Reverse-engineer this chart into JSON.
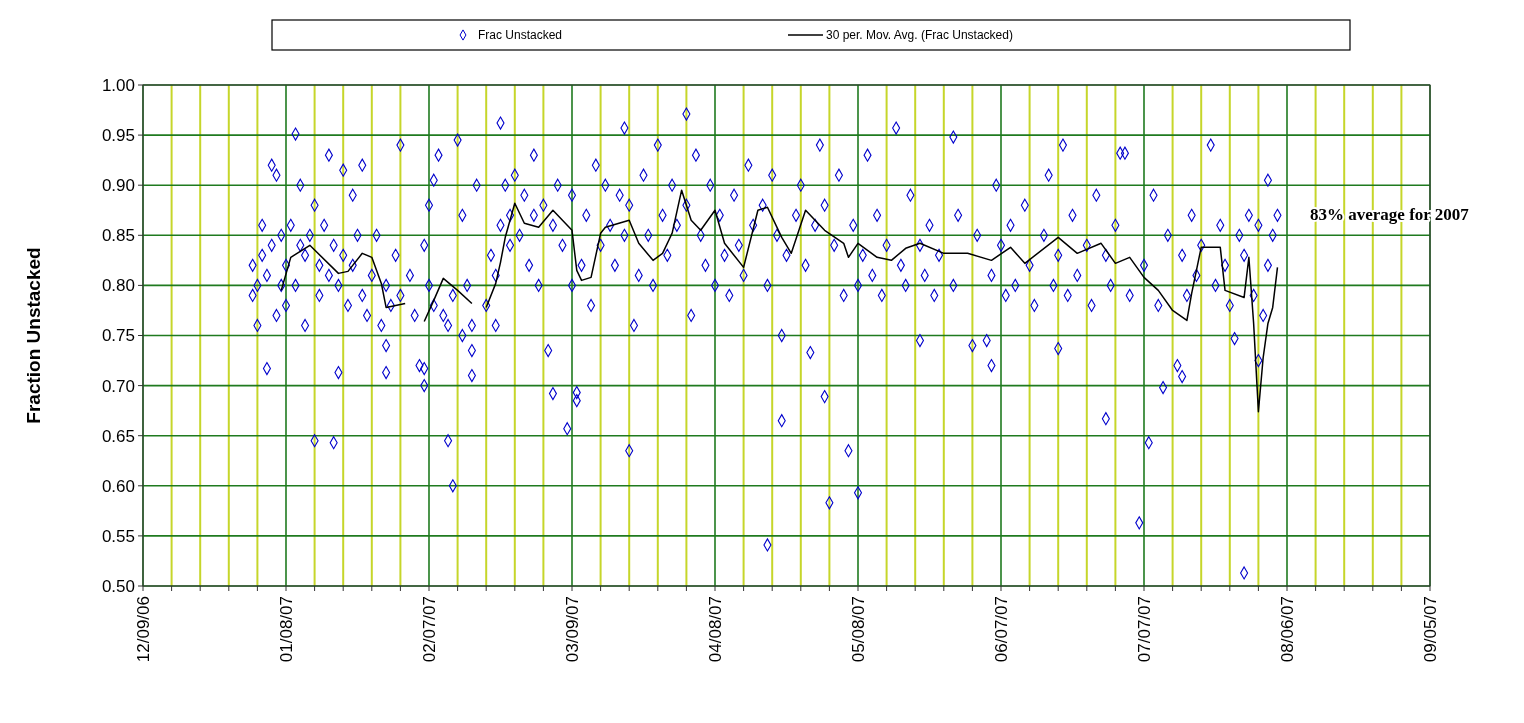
{
  "chart_data": {
    "type": "scatter",
    "ylabel": "Fraction Unstacked",
    "annotations": [
      "83% average for 2007"
    ],
    "legend": "top",
    "grid": true,
    "xlim": [
      "2006-12-09",
      "2007-09-05"
    ],
    "xticks": [
      {
        "value": "2006-12-09",
        "label": "12/09/06"
      },
      {
        "value": "2006-12-15",
        "label": null
      },
      {
        "value": "2006-12-21",
        "label": null
      },
      {
        "value": "2006-12-27",
        "label": null
      },
      {
        "value": "2007-01-02",
        "label": null
      },
      {
        "value": "2007-01-08",
        "label": "01/08/07"
      },
      {
        "value": "2007-01-14",
        "label": null
      },
      {
        "value": "2007-01-20",
        "label": null
      },
      {
        "value": "2007-01-26",
        "label": null
      },
      {
        "value": "2007-02-01",
        "label": null
      },
      {
        "value": "2007-02-07",
        "label": "02/07/07"
      },
      {
        "value": "2007-02-13",
        "label": null
      },
      {
        "value": "2007-02-19",
        "label": null
      },
      {
        "value": "2007-02-25",
        "label": null
      },
      {
        "value": "2007-03-03",
        "label": null
      },
      {
        "value": "2007-03-09",
        "label": "03/09/07"
      },
      {
        "value": "2007-03-15",
        "label": null
      },
      {
        "value": "2007-03-21",
        "label": null
      },
      {
        "value": "2007-03-27",
        "label": null
      },
      {
        "value": "2007-04-02",
        "label": null
      },
      {
        "value": "2007-04-08",
        "label": "04/08/07"
      },
      {
        "value": "2007-04-14",
        "label": null
      },
      {
        "value": "2007-04-20",
        "label": null
      },
      {
        "value": "2007-04-26",
        "label": null
      },
      {
        "value": "2007-05-02",
        "label": null
      },
      {
        "value": "2007-05-08",
        "label": "05/08/07"
      },
      {
        "value": "2007-05-14",
        "label": null
      },
      {
        "value": "2007-05-20",
        "label": null
      },
      {
        "value": "2007-05-26",
        "label": null
      },
      {
        "value": "2007-06-01",
        "label": null
      },
      {
        "value": "2007-06-07",
        "label": "06/07/07"
      },
      {
        "value": "2007-06-13",
        "label": null
      },
      {
        "value": "2007-06-19",
        "label": null
      },
      {
        "value": "2007-06-25",
        "label": null
      },
      {
        "value": "2007-07-01",
        "label": null
      },
      {
        "value": "2007-07-07",
        "label": "07/07/07"
      },
      {
        "value": "2007-07-13",
        "label": null
      },
      {
        "value": "2007-07-19",
        "label": null
      },
      {
        "value": "2007-07-25",
        "label": null
      },
      {
        "value": "2007-07-31",
        "label": null
      },
      {
        "value": "2007-08-06",
        "label": "08/06/07"
      },
      {
        "value": "2007-08-12",
        "label": null
      },
      {
        "value": "2007-08-18",
        "label": null
      },
      {
        "value": "2007-08-24",
        "label": null
      },
      {
        "value": "2007-08-30",
        "label": null
      },
      {
        "value": "2007-09-05",
        "label": "09/05/07"
      }
    ],
    "ylim": [
      0.5,
      1.0
    ],
    "yticks": [
      {
        "value": 0.5,
        "label": "0.50"
      },
      {
        "value": 0.55,
        "label": "0.55"
      },
      {
        "value": 0.6,
        "label": "0.60"
      },
      {
        "value": 0.65,
        "label": "0.65"
      },
      {
        "value": 0.7,
        "label": "0.70"
      },
      {
        "value": 0.75,
        "label": "0.75"
      },
      {
        "value": 0.8,
        "label": "0.80"
      },
      {
        "value": 0.85,
        "label": "0.85"
      },
      {
        "value": 0.9,
        "label": "0.90"
      },
      {
        "value": 0.95,
        "label": "0.95"
      },
      {
        "value": 1.0,
        "label": "1.00"
      }
    ],
    "series": [
      {
        "name": "Frac Unstacked",
        "marker": "diamond",
        "color": "#0000cc",
        "x": [
          "2007-01-01",
          "2007-01-01",
          "2007-01-02",
          "2007-01-02",
          "2007-01-03",
          "2007-01-03",
          "2007-01-04",
          "2007-01-04",
          "2007-01-05",
          "2007-01-05",
          "2007-01-06",
          "2007-01-06",
          "2007-01-07",
          "2007-01-07",
          "2007-01-08",
          "2007-01-08",
          "2007-01-09",
          "2007-01-10",
          "2007-01-10",
          "2007-01-11",
          "2007-01-11",
          "2007-01-12",
          "2007-01-12",
          "2007-01-13",
          "2007-01-14",
          "2007-01-14",
          "2007-01-15",
          "2007-01-15",
          "2007-01-16",
          "2007-01-17",
          "2007-01-17",
          "2007-01-18",
          "2007-01-18",
          "2007-01-19",
          "2007-01-19",
          "2007-01-20",
          "2007-01-20",
          "2007-01-21",
          "2007-01-22",
          "2007-01-22",
          "2007-01-23",
          "2007-01-24",
          "2007-01-24",
          "2007-01-25",
          "2007-01-26",
          "2007-01-27",
          "2007-01-28",
          "2007-01-29",
          "2007-01-29",
          "2007-01-29",
          "2007-01-30",
          "2007-01-31",
          "2007-02-01",
          "2007-02-01",
          "2007-02-03",
          "2007-02-04",
          "2007-02-05",
          "2007-02-06",
          "2007-02-06",
          "2007-02-06",
          "2007-02-07",
          "2007-02-07",
          "2007-02-08",
          "2007-02-08",
          "2007-02-09",
          "2007-02-10",
          "2007-02-11",
          "2007-02-11",
          "2007-02-12",
          "2007-02-12",
          "2007-02-13",
          "2007-02-14",
          "2007-02-14",
          "2007-02-15",
          "2007-02-16",
          "2007-02-16",
          "2007-02-16",
          "2007-02-17",
          "2007-02-19",
          "2007-02-20",
          "2007-02-21",
          "2007-02-21",
          "2007-02-22",
          "2007-02-22",
          "2007-02-23",
          "2007-02-24",
          "2007-02-24",
          "2007-02-25",
          "2007-02-26",
          "2007-02-27",
          "2007-02-28",
          "2007-03-01",
          "2007-03-01",
          "2007-03-02",
          "2007-03-03",
          "2007-03-04",
          "2007-03-05",
          "2007-03-05",
          "2007-03-06",
          "2007-03-07",
          "2007-03-08",
          "2007-03-09",
          "2007-03-09",
          "2007-03-10",
          "2007-03-10",
          "2007-03-11",
          "2007-03-12",
          "2007-03-13",
          "2007-03-14",
          "2007-03-15",
          "2007-03-16",
          "2007-03-17",
          "2007-03-18",
          "2007-03-19",
          "2007-03-20",
          "2007-03-20",
          "2007-03-21",
          "2007-03-21",
          "2007-03-22",
          "2007-03-23",
          "2007-03-24",
          "2007-03-25",
          "2007-03-26",
          "2007-03-27",
          "2007-03-28",
          "2007-03-29",
          "2007-03-30",
          "2007-03-31",
          "2007-04-02",
          "2007-04-02",
          "2007-04-03",
          "2007-04-04",
          "2007-04-05",
          "2007-04-06",
          "2007-04-07",
          "2007-04-08",
          "2007-04-09",
          "2007-04-10",
          "2007-04-11",
          "2007-04-12",
          "2007-04-13",
          "2007-04-14",
          "2007-04-15",
          "2007-04-16",
          "2007-04-18",
          "2007-04-19",
          "2007-04-19",
          "2007-04-20",
          "2007-04-21",
          "2007-04-22",
          "2007-04-22",
          "2007-04-23",
          "2007-04-25",
          "2007-04-26",
          "2007-04-27",
          "2007-04-28",
          "2007-04-29",
          "2007-04-30",
          "2007-05-01",
          "2007-05-01",
          "2007-05-02",
          "2007-05-03",
          "2007-05-04",
          "2007-05-05",
          "2007-05-06",
          "2007-05-07",
          "2007-05-08",
          "2007-05-08",
          "2007-05-09",
          "2007-05-10",
          "2007-05-11",
          "2007-05-12",
          "2007-05-13",
          "2007-05-14",
          "2007-05-16",
          "2007-05-17",
          "2007-05-18",
          "2007-05-19",
          "2007-05-21",
          "2007-05-21",
          "2007-05-22",
          "2007-05-23",
          "2007-05-24",
          "2007-05-25",
          "2007-05-28",
          "2007-05-28",
          "2007-05-29",
          "2007-06-01",
          "2007-06-02",
          "2007-06-04",
          "2007-06-05",
          "2007-06-05",
          "2007-06-06",
          "2007-06-07",
          "2007-06-08",
          "2007-06-09",
          "2007-06-10",
          "2007-06-12",
          "2007-06-13",
          "2007-06-14",
          "2007-06-16",
          "2007-06-17",
          "2007-06-18",
          "2007-06-19",
          "2007-06-19",
          "2007-06-20",
          "2007-06-21",
          "2007-06-22",
          "2007-06-23",
          "2007-06-25",
          "2007-06-26",
          "2007-06-27",
          "2007-06-29",
          "2007-06-29",
          "2007-06-30",
          "2007-07-01",
          "2007-07-02",
          "2007-07-03",
          "2007-07-04",
          "2007-07-06",
          "2007-07-07",
          "2007-07-08",
          "2007-07-09",
          "2007-07-10",
          "2007-07-11",
          "2007-07-12",
          "2007-07-14",
          "2007-07-15",
          "2007-07-15",
          "2007-07-16",
          "2007-07-17",
          "2007-07-18",
          "2007-07-19",
          "2007-07-21",
          "2007-07-22",
          "2007-07-23",
          "2007-07-24",
          "2007-07-25",
          "2007-07-26",
          "2007-07-27",
          "2007-07-28",
          "2007-07-28",
          "2007-07-29",
          "2007-07-30",
          "2007-07-31",
          "2007-07-31",
          "2007-08-01",
          "2007-08-02",
          "2007-08-02",
          "2007-08-03",
          "2007-08-04"
        ],
        "values": [
          0.79,
          0.82,
          0.76,
          0.8,
          0.86,
          0.83,
          0.717,
          0.81,
          0.92,
          0.84,
          0.77,
          0.91,
          0.8,
          0.85,
          0.78,
          0.82,
          0.86,
          0.951,
          0.8,
          0.84,
          0.9,
          0.76,
          0.83,
          0.85,
          0.645,
          0.88,
          0.82,
          0.79,
          0.86,
          0.93,
          0.81,
          0.643,
          0.84,
          0.713,
          0.8,
          0.915,
          0.83,
          0.78,
          0.89,
          0.82,
          0.85,
          0.92,
          0.79,
          0.77,
          0.81,
          0.85,
          0.76,
          0.713,
          0.74,
          0.8,
          0.78,
          0.83,
          0.79,
          0.94,
          0.81,
          0.77,
          0.72,
          0.717,
          0.7,
          0.84,
          0.88,
          0.8,
          0.905,
          0.78,
          0.93,
          0.77,
          0.645,
          0.76,
          0.6,
          0.79,
          0.945,
          0.75,
          0.87,
          0.8,
          0.735,
          0.71,
          0.76,
          0.9,
          0.78,
          0.83,
          0.76,
          0.81,
          0.962,
          0.86,
          0.9,
          0.87,
          0.84,
          0.91,
          0.85,
          0.89,
          0.82,
          0.93,
          0.87,
          0.8,
          0.88,
          0.735,
          0.692,
          0.86,
          0.9,
          0.84,
          0.657,
          0.8,
          0.89,
          0.693,
          0.685,
          0.82,
          0.87,
          0.78,
          0.92,
          0.84,
          0.9,
          0.86,
          0.82,
          0.89,
          0.957,
          0.85,
          0.635,
          0.88,
          0.76,
          0.81,
          0.91,
          0.85,
          0.8,
          0.94,
          0.87,
          0.83,
          0.9,
          0.86,
          0.971,
          0.88,
          0.77,
          0.93,
          0.85,
          0.82,
          0.9,
          0.8,
          0.87,
          0.83,
          0.79,
          0.89,
          0.84,
          0.81,
          0.92,
          0.86,
          0.88,
          0.8,
          0.541,
          0.91,
          0.85,
          0.75,
          0.665,
          0.83,
          0.87,
          0.9,
          0.82,
          0.733,
          0.86,
          0.94,
          0.689,
          0.88,
          0.583,
          0.84,
          0.91,
          0.79,
          0.635,
          0.86,
          0.593,
          0.8,
          0.83,
          0.93,
          0.81,
          0.87,
          0.79,
          0.84,
          0.957,
          0.82,
          0.8,
          0.89,
          0.745,
          0.84,
          0.81,
          0.86,
          0.79,
          0.83,
          0.948,
          0.8,
          0.87,
          0.74,
          0.85,
          0.745,
          0.72,
          0.81,
          0.9,
          0.84,
          0.79,
          0.86,
          0.8,
          0.88,
          0.82,
          0.78,
          0.85,
          0.91,
          0.8,
          0.737,
          0.83,
          0.94,
          0.79,
          0.87,
          0.81,
          0.84,
          0.78,
          0.89,
          0.667,
          0.83,
          0.8,
          0.86,
          0.932,
          0.932,
          0.79,
          0.563,
          0.82,
          0.643,
          0.89,
          0.78,
          0.698,
          0.85,
          0.72,
          0.709,
          0.83,
          0.79,
          0.87,
          0.81,
          0.84,
          0.94,
          0.8,
          0.86,
          0.82,
          0.78,
          0.747,
          0.85,
          0.513,
          0.83,
          0.87,
          0.79,
          0.725,
          0.86,
          0.77,
          0.905,
          0.82,
          0.85,
          0.87
        ]
      },
      {
        "name": "30 per. Mov. Avg. (Frac Unstacked)",
        "type": "line",
        "marker": "none",
        "color": "#000000",
        "x": [
          "2007-01-07",
          "2007-01-09",
          "2007-01-13",
          "2007-01-19",
          "2007-01-21",
          "2007-01-24",
          "2007-01-26",
          "2007-01-28",
          "2007-01-29",
          "2007-02-02",
          "2007-02-04",
          "2007-02-06",
          "2007-02-08",
          "2007-02-10",
          "2007-02-13",
          "2007-02-16",
          "2007-02-17",
          "2007-02-19",
          "2007-02-21",
          "2007-02-22",
          "2007-02-23",
          "2007-02-25",
          "2007-02-27",
          "2007-03-02",
          "2007-03-05",
          "2007-03-09",
          "2007-03-10",
          "2007-03-11",
          "2007-03-13",
          "2007-03-15",
          "2007-03-16",
          "2007-03-21",
          "2007-03-23",
          "2007-03-26",
          "2007-03-28",
          "2007-03-30",
          "2007-04-01",
          "2007-04-03",
          "2007-04-05",
          "2007-04-08",
          "2007-04-10",
          "2007-04-14",
          "2007-04-17",
          "2007-04-19",
          "2007-04-22",
          "2007-04-24",
          "2007-04-27",
          "2007-05-01",
          "2007-05-05",
          "2007-05-06",
          "2007-05-08",
          "2007-05-12",
          "2007-05-15",
          "2007-05-18",
          "2007-05-21",
          "2007-05-26",
          "2007-05-31",
          "2007-06-05",
          "2007-06-09",
          "2007-06-12",
          "2007-06-19",
          "2007-06-23",
          "2007-06-28",
          "2007-07-01",
          "2007-07-04",
          "2007-07-07",
          "2007-07-10",
          "2007-07-13",
          "2007-07-16",
          "2007-07-17",
          "2007-07-19",
          "2007-07-23",
          "2007-07-24",
          "2007-07-28",
          "2007-07-29",
          "2007-07-30",
          "2007-07-31",
          "2007-08-01",
          "2007-08-02",
          "2007-08-03",
          "2007-08-04"
        ],
        "values": [
          0.795,
          0.828,
          0.84,
          0.812,
          0.814,
          0.832,
          0.828,
          0.802,
          0.778,
          0.782,
          null,
          0.764,
          0.785,
          0.807,
          0.795,
          0.782,
          null,
          0.778,
          0.802,
          0.823,
          0.848,
          0.882,
          0.862,
          0.858,
          0.875,
          0.855,
          0.815,
          0.805,
          0.808,
          0.852,
          0.858,
          0.865,
          0.842,
          0.825,
          0.832,
          0.852,
          0.895,
          0.865,
          0.855,
          0.875,
          0.842,
          0.818,
          0.875,
          0.878,
          0.848,
          0.832,
          0.875,
          0.855,
          0.842,
          0.828,
          0.842,
          0.828,
          0.825,
          0.837,
          0.842,
          0.832,
          0.832,
          0.825,
          0.838,
          0.822,
          0.848,
          0.832,
          0.842,
          0.822,
          0.828,
          0.808,
          0.795,
          0.775,
          0.765,
          0.792,
          0.838,
          0.838,
          0.795,
          0.788,
          0.828,
          0.762,
          0.674,
          0.728,
          0.762,
          0.778,
          0.818
        ]
      }
    ]
  }
}
